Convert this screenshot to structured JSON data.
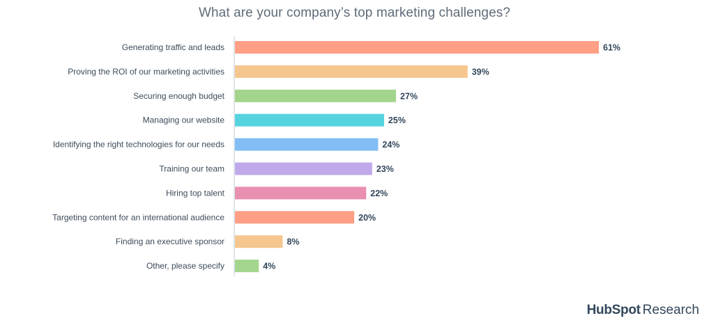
{
  "chart_data": {
    "type": "bar",
    "orientation": "horizontal",
    "title": "What are your company’s top marketing challenges?",
    "xlabel": "",
    "ylabel": "",
    "xlim": [
      0,
      61
    ],
    "grid": false,
    "categories": [
      "Generating traffic and leads",
      "Proving the ROI of our marketing activities",
      "Securing enough budget",
      "Managing our website",
      "Identifying the right technologies for our needs",
      "Training our team",
      "Hiring top talent",
      "Targeting content for an international audience",
      "Finding an executive sponsor",
      "Other, please specify"
    ],
    "values": [
      61,
      39,
      27,
      25,
      24,
      23,
      22,
      20,
      8,
      4
    ],
    "value_labels": [
      "61%",
      "39%",
      "27%",
      "25%",
      "24%",
      "23%",
      "22%",
      "20%",
      "8%",
      "4%"
    ],
    "colors": [
      "#ff9f85",
      "#f5c68d",
      "#a3d58c",
      "#55d4de",
      "#82bdf4",
      "#c0a9ea",
      "#e98fb1",
      "#ff9f85",
      "#f5c68d",
      "#a3d58c"
    ]
  },
  "footer": {
    "brand_name": "HubSpot",
    "brand_suffix": "Research"
  }
}
